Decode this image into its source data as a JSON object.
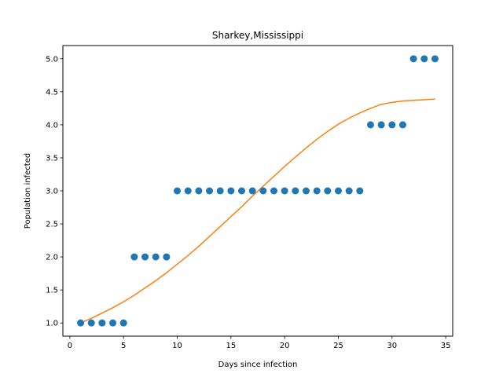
{
  "chart_data": {
    "type": "scatter",
    "title": "Sharkey,Mississippi",
    "xlabel": "Days since infection",
    "ylabel": "Population infected",
    "xlim": [
      -0.65,
      35.65
    ],
    "ylim": [
      0.8,
      5.2
    ],
    "xticks": [
      0,
      5,
      10,
      15,
      20,
      25,
      30,
      35
    ],
    "yticks": [
      1.0,
      1.5,
      2.0,
      2.5,
      3.0,
      3.5,
      4.0,
      4.5,
      5.0
    ],
    "grid": false,
    "series": [
      {
        "type": "scatter",
        "color": "#1f77b4",
        "x": [
          1,
          2,
          3,
          4,
          5,
          6,
          7,
          8,
          9,
          10,
          11,
          12,
          13,
          14,
          15,
          16,
          17,
          18,
          19,
          20,
          21,
          22,
          23,
          24,
          25,
          26,
          27,
          28,
          29,
          30,
          31,
          32,
          33,
          34
        ],
        "y": [
          1,
          1,
          1,
          1,
          1,
          2,
          2,
          2,
          2,
          3,
          3,
          3,
          3,
          3,
          3,
          3,
          3,
          3,
          3,
          3,
          3,
          3,
          3,
          3,
          3,
          3,
          3,
          4,
          4,
          4,
          4,
          5,
          5,
          5
        ]
      },
      {
        "type": "line",
        "color": "#ff7f0e",
        "x": [
          1,
          2,
          3,
          4,
          5,
          6,
          7,
          8,
          9,
          10,
          11,
          12,
          13,
          14,
          15,
          16,
          17,
          18,
          19,
          20,
          21,
          22,
          23,
          24,
          25,
          26,
          27,
          28,
          29,
          30,
          31,
          32,
          33,
          34
        ],
        "y": [
          1.0,
          1.07,
          1.15,
          1.23,
          1.32,
          1.42,
          1.53,
          1.64,
          1.76,
          1.89,
          2.02,
          2.16,
          2.31,
          2.46,
          2.61,
          2.76,
          2.92,
          3.07,
          3.22,
          3.37,
          3.51,
          3.65,
          3.78,
          3.9,
          4.01,
          4.1,
          4.18,
          4.25,
          4.31,
          4.34,
          4.36,
          4.37,
          4.38,
          4.39
        ]
      }
    ]
  }
}
